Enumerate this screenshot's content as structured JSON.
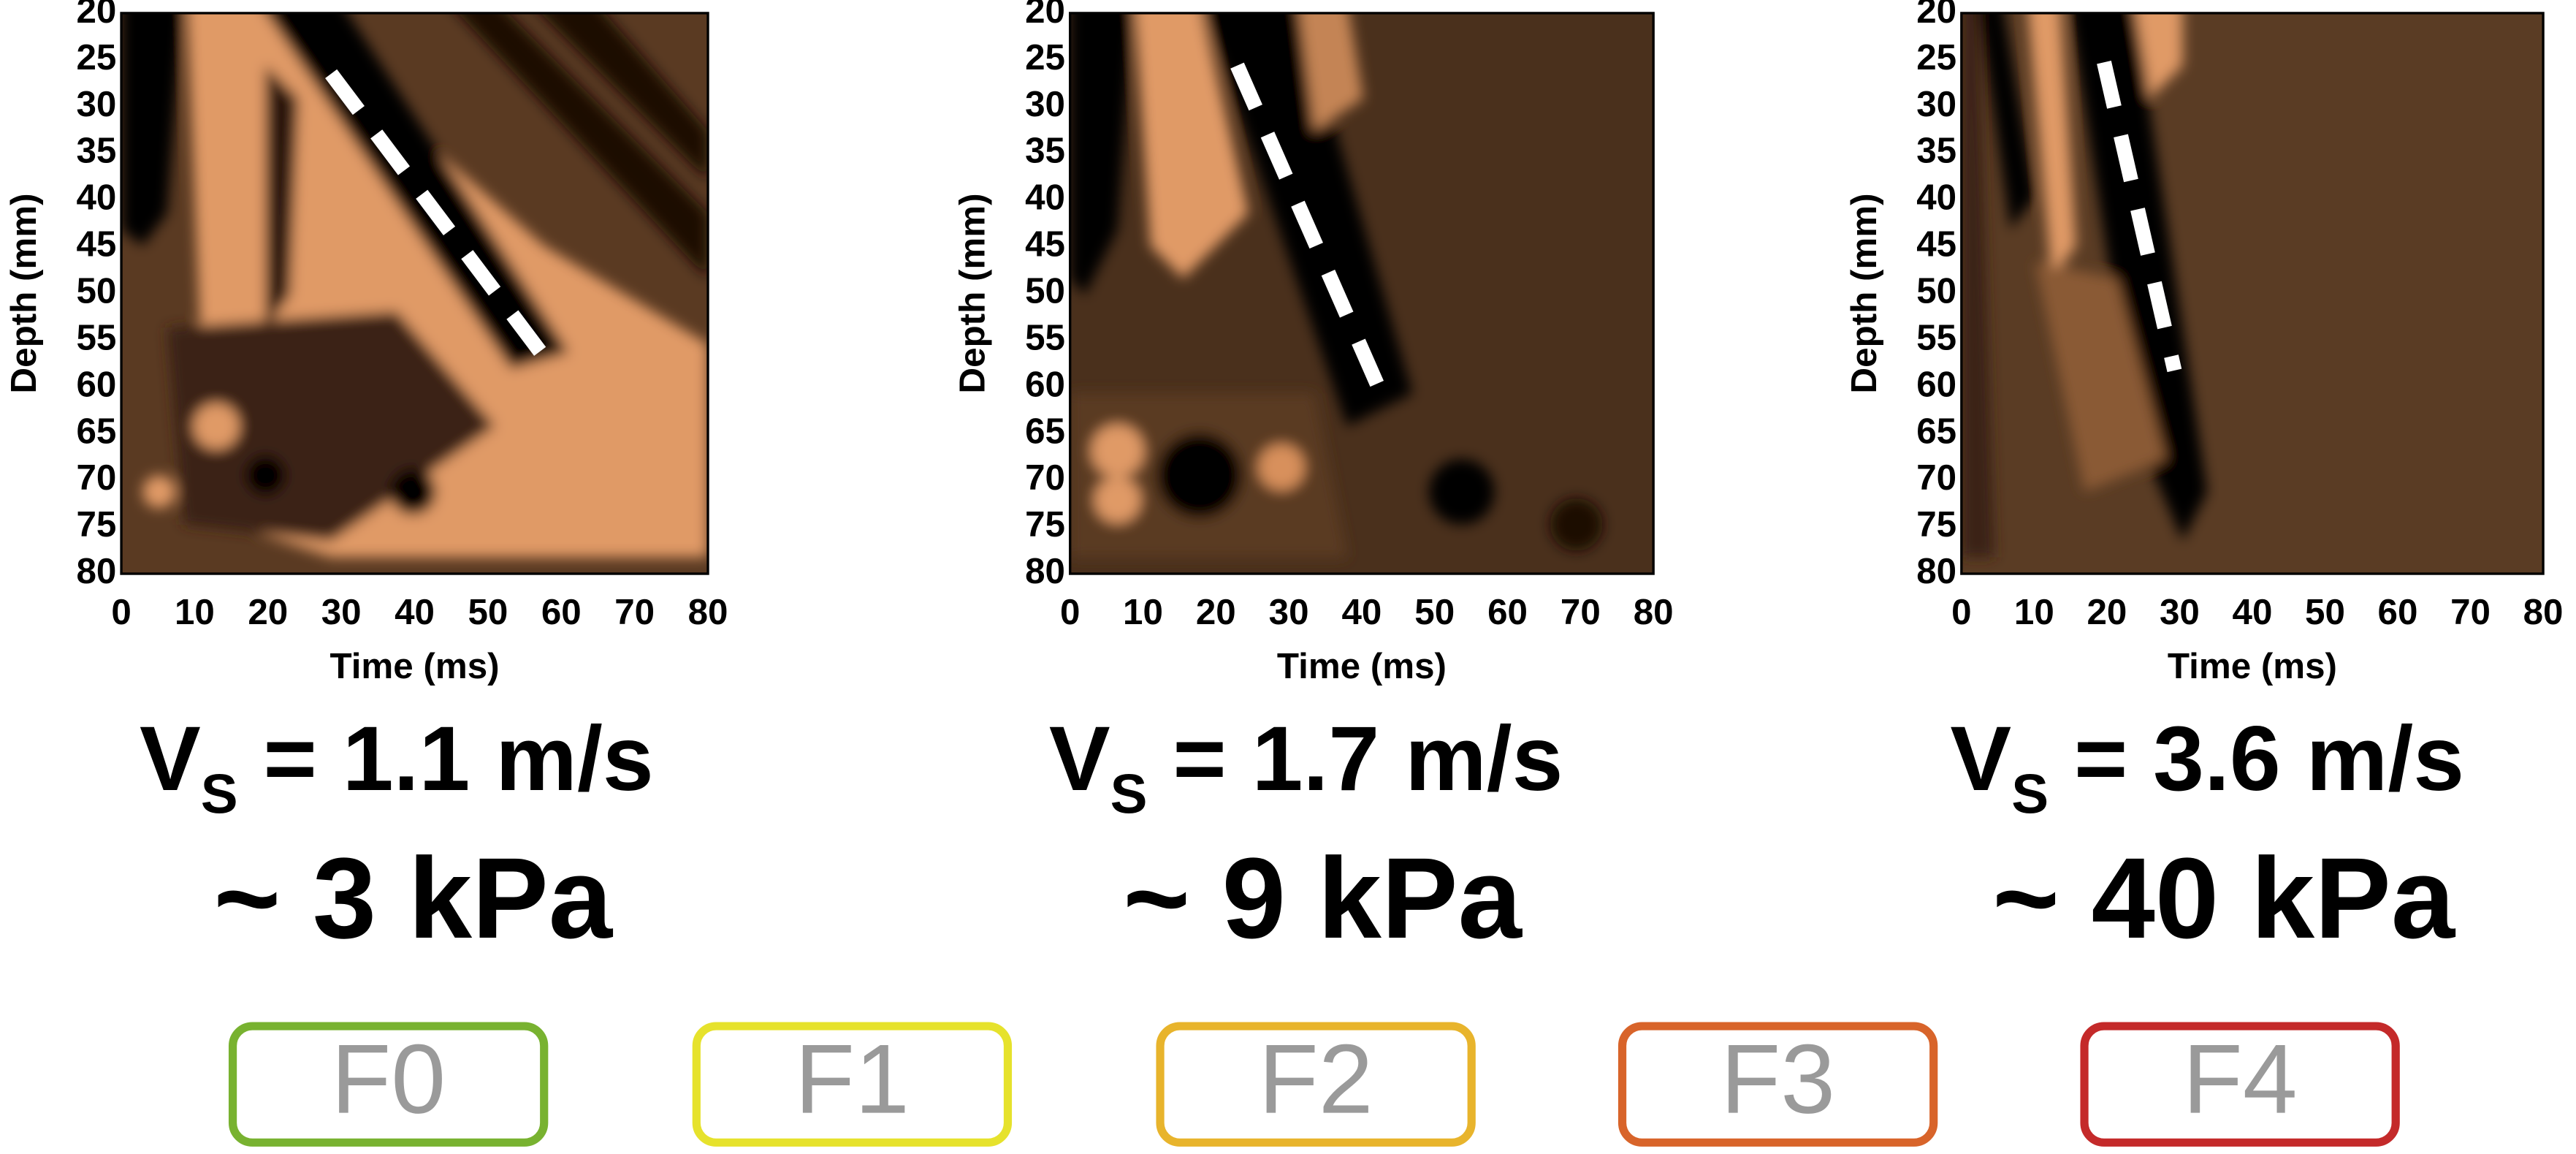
{
  "panels": [
    {
      "y_label": "Depth (mm)",
      "x_label": "Time (ms)",
      "yticks": [
        20,
        25,
        30,
        35,
        40,
        45,
        50,
        55,
        60,
        65,
        70,
        75,
        80
      ],
      "xticks": [
        0,
        10,
        20,
        30,
        40,
        50,
        60,
        70,
        80
      ],
      "velocity": {
        "symbol": "V",
        "subscript": "S",
        "text": " = 1.1 m/s"
      },
      "stiffness": "~ 3 kPa"
    },
    {
      "y_label": "Depth (mm)",
      "x_label": "Time (ms)",
      "yticks": [
        20,
        25,
        30,
        35,
        40,
        45,
        50,
        55,
        60,
        65,
        70,
        75,
        80
      ],
      "xticks": [
        0,
        10,
        20,
        30,
        40,
        50,
        60,
        70,
        80
      ],
      "velocity": {
        "symbol": "V",
        "subscript": "S",
        "text": " = 1.7 m/s"
      },
      "stiffness": "~ 9 kPa"
    },
    {
      "y_label": "Depth (mm)",
      "x_label": "Time (ms)",
      "yticks": [
        20,
        25,
        30,
        35,
        40,
        45,
        50,
        55,
        60,
        65,
        70,
        75,
        80
      ],
      "xticks": [
        0,
        10,
        20,
        30,
        40,
        50,
        60,
        70,
        80
      ],
      "velocity": {
        "symbol": "V",
        "subscript": "S",
        "text": " = 3.6 m/s"
      },
      "stiffness": "~ 40 kPa"
    }
  ],
  "stages": [
    {
      "label": "F0",
      "color": "#78b230"
    },
    {
      "label": "F1",
      "color": "#e6e22c"
    },
    {
      "label": "F2",
      "color": "#e8b42c"
    },
    {
      "label": "F3",
      "color": "#d8642a"
    },
    {
      "label": "F4",
      "color": "#c42a2a"
    }
  ]
}
